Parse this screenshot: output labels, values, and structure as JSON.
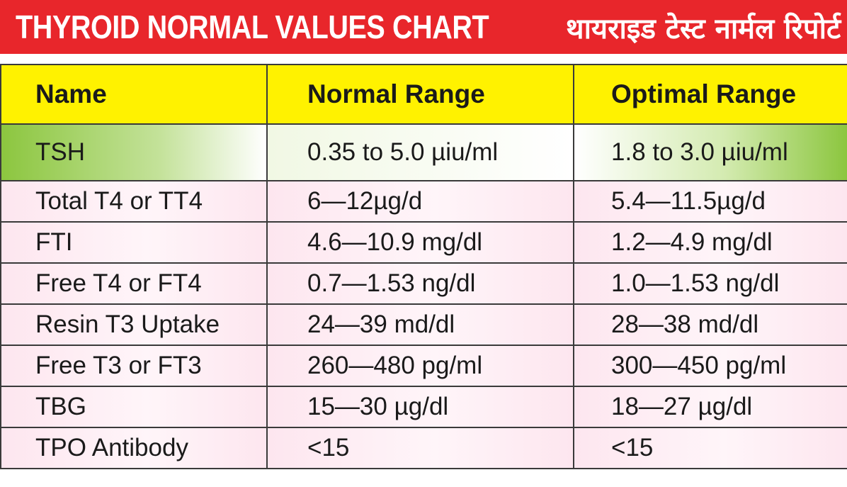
{
  "banner": {
    "title_en": "THYROID NORMAL VALUES CHART",
    "title_hi": "थायराइड टेस्ट नार्मल रिपोर्ट"
  },
  "table": {
    "headers": [
      "Name",
      "Normal Range",
      "Optimal Range"
    ],
    "rows": [
      {
        "name": "TSH",
        "normal": "0.35 to 5.0 µiu/ml",
        "optimal": "1.8 to 3.0 µiu/ml"
      },
      {
        "name": "Total T4 or TT4",
        "normal": "6—12µg/d",
        "optimal": "5.4—11.5µg/d"
      },
      {
        "name": "FTI",
        "normal": "4.6—10.9 mg/dl",
        "optimal": "1.2—4.9 mg/dl"
      },
      {
        "name": "Free T4 or FT4",
        "normal": "0.7—1.53 ng/dl",
        "optimal": "1.0—1.53 ng/dl"
      },
      {
        "name": "Resin T3 Uptake",
        "normal": "24—39 md/dl",
        "optimal": "28—38 md/dl"
      },
      {
        "name": "Free T3 or FT3",
        "normal": "260—480 pg/ml",
        "optimal": "300—450 pg/ml"
      },
      {
        "name": "TBG",
        "normal": "15—30 µg/dl",
        "optimal": "18—27 µg/dl"
      },
      {
        "name": "TPO Antibody",
        "normal": "<15",
        "optimal": "<15"
      }
    ]
  },
  "colors": {
    "banner": "#e8262b",
    "header": "#fff200",
    "highlight": "#8cc63f",
    "row": "#fde6ef"
  }
}
